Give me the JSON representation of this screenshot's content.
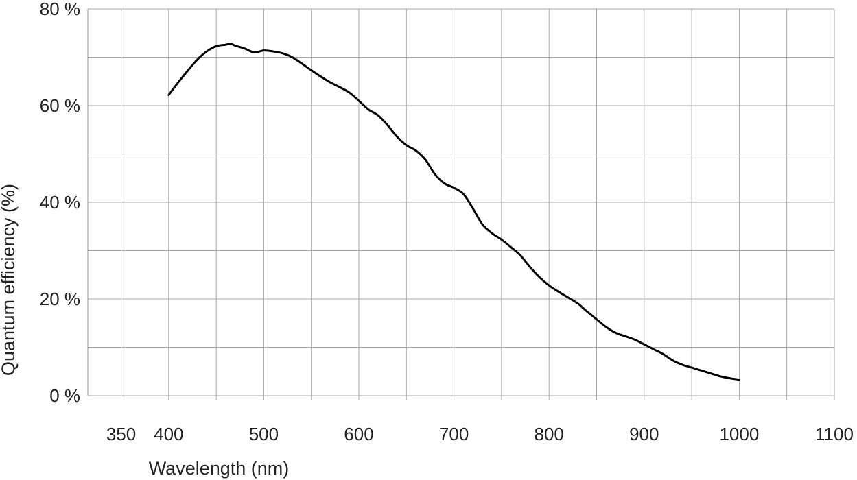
{
  "chart_data": {
    "type": "line",
    "xlabel": "Wavelength (nm)",
    "ylabel": "Quantum efficiency (%)",
    "xlim": [
      315,
      1100
    ],
    "ylim": [
      0,
      80
    ],
    "x_ticks": [
      350,
      400,
      500,
      600,
      700,
      800,
      900,
      1000,
      1100
    ],
    "x_tick_labels": [
      "350",
      "400",
      "500",
      "600",
      "700",
      "800",
      "900",
      "1000",
      "1100"
    ],
    "x_grid": [
      350,
      400,
      450,
      500,
      550,
      600,
      650,
      700,
      750,
      800,
      850,
      900,
      950,
      1000,
      1050,
      1100
    ],
    "y_ticks": [
      0,
      20,
      40,
      60,
      80
    ],
    "y_tick_labels": [
      "0 %",
      "20 %",
      "40 %",
      "60 %",
      "80 %"
    ],
    "y_grid": [
      0,
      10,
      20,
      30,
      40,
      50,
      60,
      70,
      80
    ],
    "grid": true,
    "series": [
      {
        "color": "#000000",
        "x": [
          400,
          410,
          420,
          430,
          440,
          450,
          460,
          465,
          470,
          480,
          490,
          500,
          510,
          520,
          530,
          540,
          550,
          560,
          570,
          580,
          590,
          600,
          610,
          620,
          630,
          640,
          650,
          660,
          670,
          680,
          690,
          700,
          710,
          720,
          730,
          740,
          750,
          760,
          770,
          780,
          790,
          800,
          810,
          820,
          830,
          840,
          850,
          860,
          870,
          880,
          890,
          900,
          910,
          920,
          930,
          940,
          950,
          960,
          970,
          980,
          990,
          1000
        ],
        "y": [
          62.2,
          64.8,
          67.2,
          69.5,
          71.2,
          72.3,
          72.6,
          72.8,
          72.4,
          71.8,
          71.0,
          71.4,
          71.2,
          70.8,
          70.0,
          68.7,
          67.3,
          66.0,
          64.8,
          63.8,
          62.7,
          61.0,
          59.2,
          58.0,
          56.0,
          53.6,
          51.8,
          50.7,
          48.8,
          45.8,
          43.9,
          43.0,
          41.7,
          38.7,
          35.4,
          33.6,
          32.3,
          30.7,
          29.0,
          26.6,
          24.5,
          22.8,
          21.5,
          20.3,
          19.1,
          17.4,
          15.8,
          14.2,
          13.0,
          12.3,
          11.6,
          10.6,
          9.6,
          8.6,
          7.3,
          6.4,
          5.8,
          5.2,
          4.6,
          4.0,
          3.6,
          3.3
        ]
      }
    ]
  }
}
